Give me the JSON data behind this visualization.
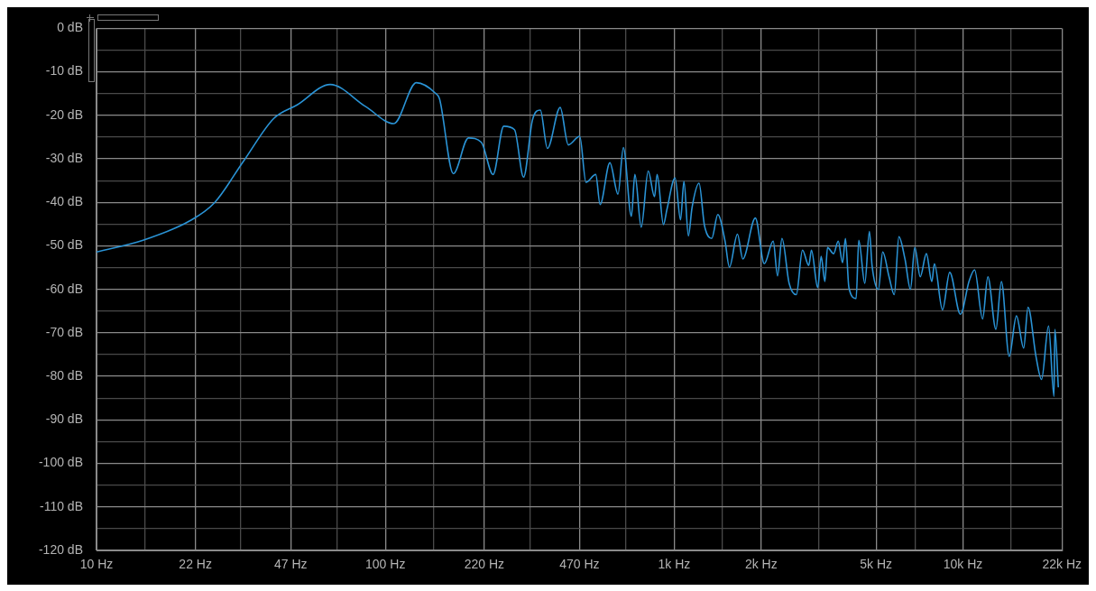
{
  "chart_data": {
    "type": "line",
    "log": "x",
    "grid": true,
    "legend": false,
    "marker": "none",
    "line_style": "solid",
    "xlim": [
      10,
      22000
    ],
    "ylim": [
      -120,
      0
    ],
    "xticks": [
      {
        "value": 10,
        "label": "10 Hz"
      },
      {
        "value": 14.68,
        "label": null
      },
      {
        "value": 22,
        "label": "22 Hz"
      },
      {
        "value": 31.62,
        "label": null
      },
      {
        "value": 47,
        "label": "47 Hz"
      },
      {
        "value": 68.13,
        "label": null
      },
      {
        "value": 100,
        "label": "100 Hz"
      },
      {
        "value": 146.8,
        "label": null
      },
      {
        "value": 220,
        "label": "220 Hz"
      },
      {
        "value": 316.2,
        "label": null
      },
      {
        "value": 470,
        "label": "470 Hz"
      },
      {
        "value": 681.3,
        "label": null
      },
      {
        "value": 1000,
        "label": "1k Hz"
      },
      {
        "value": 1468,
        "label": null
      },
      {
        "value": 2000,
        "label": "2k Hz"
      },
      {
        "value": 3162,
        "label": null
      },
      {
        "value": 5000,
        "label": "5k Hz"
      },
      {
        "value": 6813,
        "label": null
      },
      {
        "value": 10000,
        "label": "10k Hz"
      },
      {
        "value": 14678,
        "label": null
      },
      {
        "value": 22000,
        "label": "22k Hz"
      }
    ],
    "yticks": [
      {
        "value": 0,
        "label": "0 dB"
      },
      {
        "value": -5,
        "label": null
      },
      {
        "value": -10,
        "label": "-10 dB"
      },
      {
        "value": -15,
        "label": null
      },
      {
        "value": -20,
        "label": "-20 dB"
      },
      {
        "value": -25,
        "label": null
      },
      {
        "value": -30,
        "label": "-30 dB"
      },
      {
        "value": -35,
        "label": null
      },
      {
        "value": -40,
        "label": "-40 dB"
      },
      {
        "value": -45,
        "label": null
      },
      {
        "value": -50,
        "label": "-50 dB"
      },
      {
        "value": -55,
        "label": null
      },
      {
        "value": -60,
        "label": "-60 dB"
      },
      {
        "value": -65,
        "label": null
      },
      {
        "value": -70,
        "label": "-70 dB"
      },
      {
        "value": -75,
        "label": null
      },
      {
        "value": -80,
        "label": "-80 dB"
      },
      {
        "value": -85,
        "label": null
      },
      {
        "value": -90,
        "label": "-90 dB"
      },
      {
        "value": -95,
        "label": null
      },
      {
        "value": -100,
        "label": "-100 dB"
      },
      {
        "value": -105,
        "label": null
      },
      {
        "value": -110,
        "label": "-110 dB"
      },
      {
        "value": -115,
        "label": null
      },
      {
        "value": -120,
        "label": "-120 dB"
      }
    ],
    "x": [
      10,
      14.5,
      21.1,
      25.6,
      32.3,
      41.1,
      49.5,
      64.4,
      85.5,
      107,
      128,
      149,
      154,
      172,
      194,
      215,
      236,
      257,
      280,
      301,
      323,
      344,
      364,
      403,
      430,
      471,
      495,
      535,
      554,
      599,
      639,
      667,
      711,
      731,
      769,
      813,
      855,
      873,
      918,
      944,
      1007,
      1052,
      1081,
      1120,
      1153,
      1219,
      1273,
      1349,
      1416,
      1500,
      1553,
      1656,
      1728,
      1910,
      2051,
      2202,
      2280,
      2362,
      2500,
      2648,
      2781,
      2924,
      2987,
      3140,
      3228,
      3324,
      3396,
      3565,
      3698,
      3828,
      3917,
      4027,
      4266,
      4356,
      4571,
      4742,
      4842,
      5093,
      5272,
      5546,
      5781,
      5998,
      6295,
      6577,
      6808,
      7112,
      7468,
      7798,
      7962,
      8492,
      8995,
      9795,
      10510,
      10970,
      11690,
      12190,
      13000,
      13580,
      14450,
      15310,
      16220,
      16790,
      17910,
      18700,
      19780,
      20650,
      20800,
      21380
    ],
    "series": [
      {
        "color": "#2a93d5",
        "values": [
          -51.4,
          -48.7,
          -44.2,
          -40.1,
          -30.5,
          -20.7,
          -17.6,
          -12.9,
          -18.0,
          -21.9,
          -12.5,
          -14.9,
          -16.2,
          -33.4,
          -25.2,
          -26.2,
          -33.6,
          -22.5,
          -23.3,
          -34.2,
          -21.1,
          -18.8,
          -27.6,
          -18.2,
          -26.8,
          -24.8,
          -35.4,
          -33.6,
          -40.5,
          -30.9,
          -38.1,
          -27.4,
          -43.2,
          -33.6,
          -45.7,
          -32.8,
          -38.7,
          -33.6,
          -45.1,
          -41.6,
          -34.4,
          -44.0,
          -35.2,
          -47.7,
          -41.2,
          -35.6,
          -45.3,
          -48.3,
          -42.8,
          -48.9,
          -54.9,
          -47.3,
          -53.0,
          -43.6,
          -54.1,
          -48.9,
          -56.9,
          -48.3,
          -58.6,
          -61.2,
          -51.0,
          -54.5,
          -51.0,
          -59.6,
          -52.4,
          -58.2,
          -50.4,
          -51.8,
          -48.9,
          -53.9,
          -48.3,
          -59.6,
          -62.1,
          -48.7,
          -58.6,
          -46.7,
          -54.5,
          -60.0,
          -51.4,
          -57.1,
          -61.2,
          -47.9,
          -53.0,
          -60.0,
          -50.4,
          -57.1,
          -51.8,
          -58.2,
          -54.1,
          -64.7,
          -56.1,
          -65.7,
          -58.0,
          -55.5,
          -66.8,
          -57.1,
          -69.2,
          -58.2,
          -75.4,
          -66.1,
          -73.5,
          -64.1,
          -75.6,
          -80.7,
          -68.4,
          -84.6,
          -69.2,
          -82.5
        ]
      }
    ]
  }
}
